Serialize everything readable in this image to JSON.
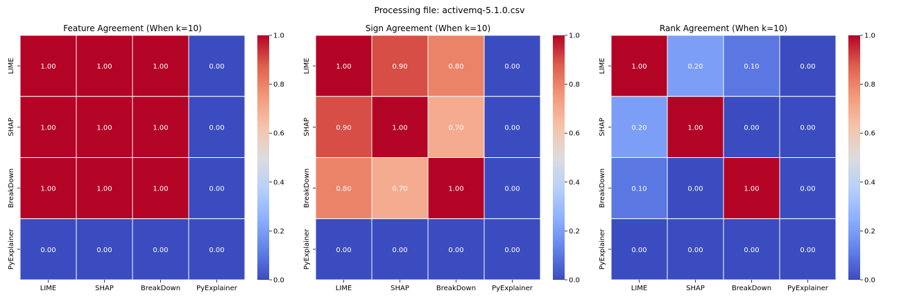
{
  "suptitle": "Processing file: activemq-5.1.0.csv",
  "colormap": {
    "name": "coolwarm",
    "stops": [
      "#3b4cc0",
      "#6282ea",
      "#8db0fe",
      "#b8d0f9",
      "#dddcdc",
      "#f5c4ac",
      "#f49a7b",
      "#de604d",
      "#b40426"
    ]
  },
  "colorbar_ticks": [
    "0.0",
    "0.2",
    "0.4",
    "0.6",
    "0.8",
    "1.0"
  ],
  "chart_data": [
    {
      "type": "heatmap",
      "title": "Feature Agreement (When k=10)",
      "rows": [
        "LIME",
        "SHAP",
        "BreakDown",
        "PyExplainer"
      ],
      "cols": [
        "LIME",
        "SHAP",
        "BreakDown",
        "PyExplainer"
      ],
      "values": [
        [
          1.0,
          1.0,
          1.0,
          0.0
        ],
        [
          1.0,
          1.0,
          1.0,
          0.0
        ],
        [
          1.0,
          1.0,
          1.0,
          0.0
        ],
        [
          0.0,
          0.0,
          0.0,
          0.0
        ]
      ],
      "labels": [
        [
          "1.00",
          "1.00",
          "1.00",
          "0.00"
        ],
        [
          "1.00",
          "1.00",
          "1.00",
          "0.00"
        ],
        [
          "1.00",
          "1.00",
          "1.00",
          "0.00"
        ],
        [
          "0.00",
          "0.00",
          "0.00",
          "0.00"
        ]
      ],
      "vmin": 0.0,
      "vmax": 1.0
    },
    {
      "type": "heatmap",
      "title": "Sign Agreement (When k=10)",
      "rows": [
        "LIME",
        "SHAP",
        "BreakDown",
        "PyExplainer"
      ],
      "cols": [
        "LIME",
        "SHAP",
        "BreakDown",
        "PyExplainer"
      ],
      "values": [
        [
          1.0,
          0.9,
          0.8,
          0.0
        ],
        [
          0.9,
          1.0,
          0.7,
          0.0
        ],
        [
          0.8,
          0.7,
          1.0,
          0.0
        ],
        [
          0.0,
          0.0,
          0.0,
          0.0
        ]
      ],
      "labels": [
        [
          "1.00",
          "0.90",
          "0.80",
          "0.00"
        ],
        [
          "0.90",
          "1.00",
          "0.70",
          "0.00"
        ],
        [
          "0.80",
          "0.70",
          "1.00",
          "0.00"
        ],
        [
          "0.00",
          "0.00",
          "0.00",
          "0.00"
        ]
      ],
      "vmin": 0.0,
      "vmax": 1.0
    },
    {
      "type": "heatmap",
      "title": "Rank Agreement (When k=10)",
      "rows": [
        "LIME",
        "SHAP",
        "BreakDown",
        "PyExplainer"
      ],
      "cols": [
        "LIME",
        "SHAP",
        "BreakDown",
        "PyExplainer"
      ],
      "values": [
        [
          1.0,
          0.2,
          0.1,
          0.0
        ],
        [
          0.2,
          1.0,
          0.0,
          0.0
        ],
        [
          0.1,
          0.0,
          1.0,
          0.0
        ],
        [
          0.0,
          0.0,
          0.0,
          0.0
        ]
      ],
      "labels": [
        [
          "1.00",
          "0.20",
          "0.10",
          "0.00"
        ],
        [
          "0.20",
          "1.00",
          "0.00",
          "0.00"
        ],
        [
          "0.10",
          "0.00",
          "1.00",
          "0.00"
        ],
        [
          "0.00",
          "0.00",
          "0.00",
          "0.00"
        ]
      ],
      "vmin": 0.0,
      "vmax": 1.0
    }
  ]
}
